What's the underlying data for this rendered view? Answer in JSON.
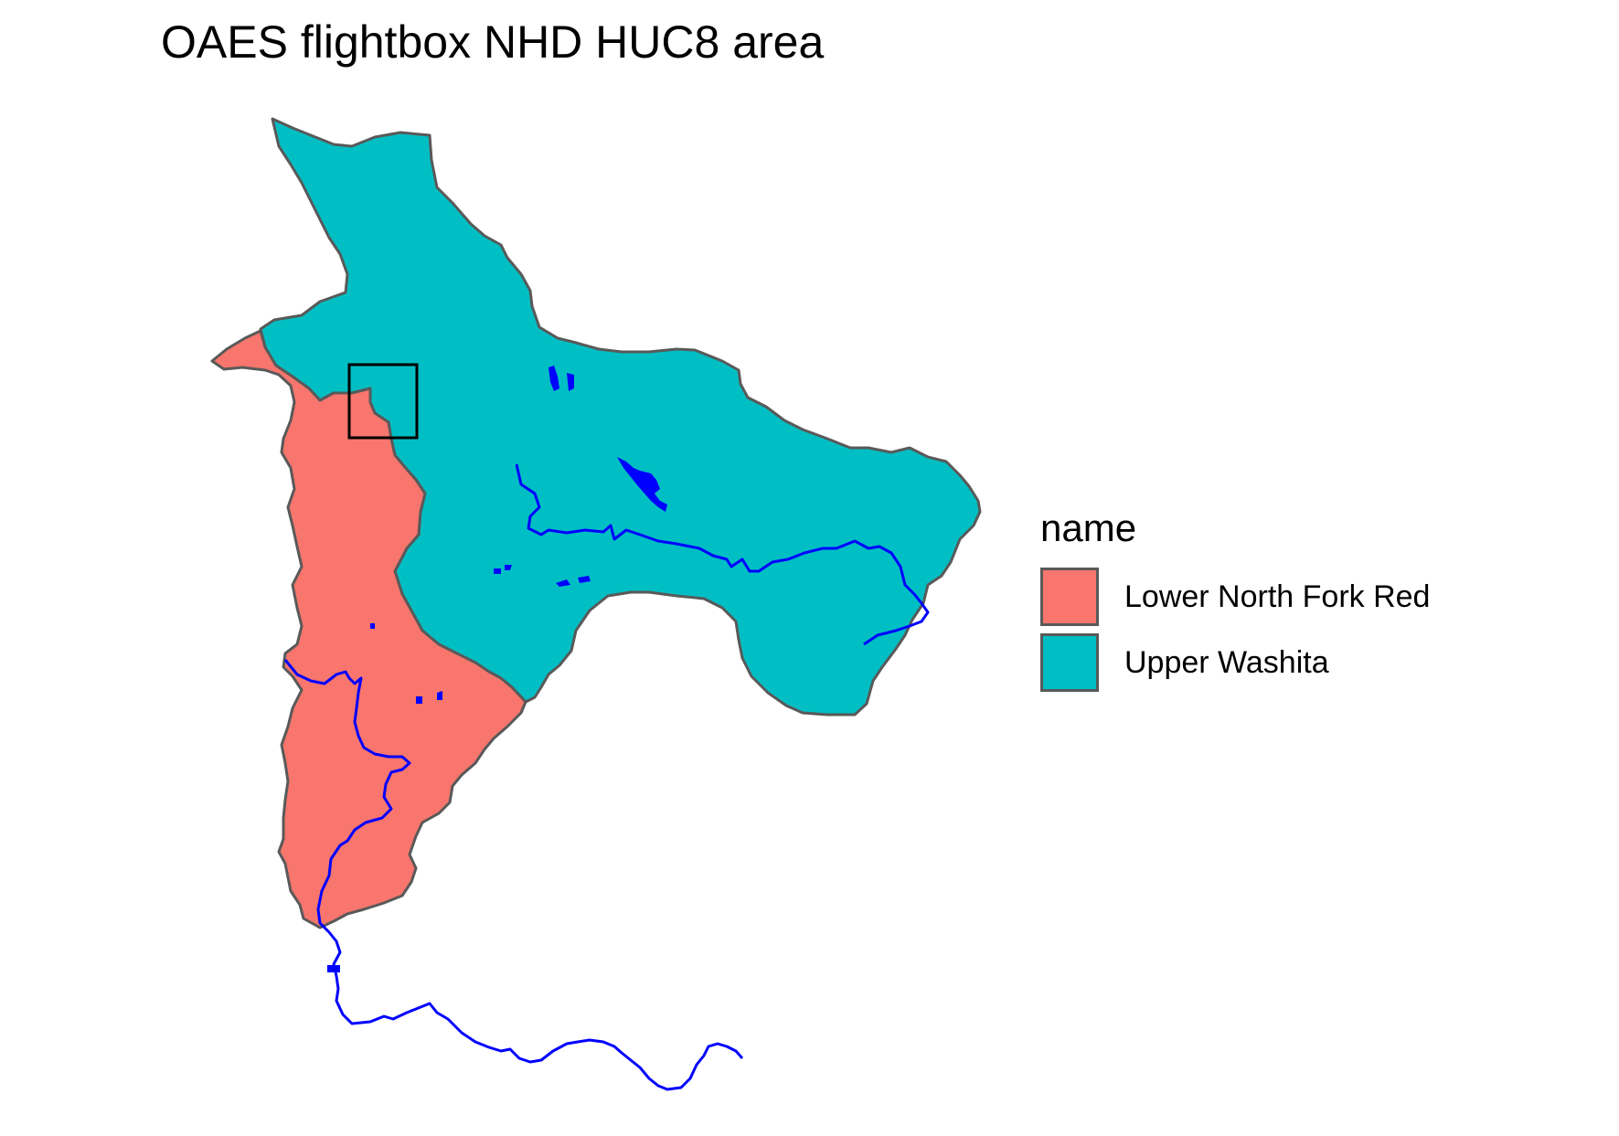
{
  "title": "OAES flightbox NHD HUC8 area",
  "legend": {
    "title": "name",
    "items": [
      {
        "label": "Lower North Fork Red",
        "color": "#F8766D"
      },
      {
        "label": "Upper Washita",
        "color": "#00BFC4"
      }
    ]
  },
  "colors": {
    "region_outline": "#595959",
    "river": "#0000FF",
    "flightbox": "#000000"
  }
}
